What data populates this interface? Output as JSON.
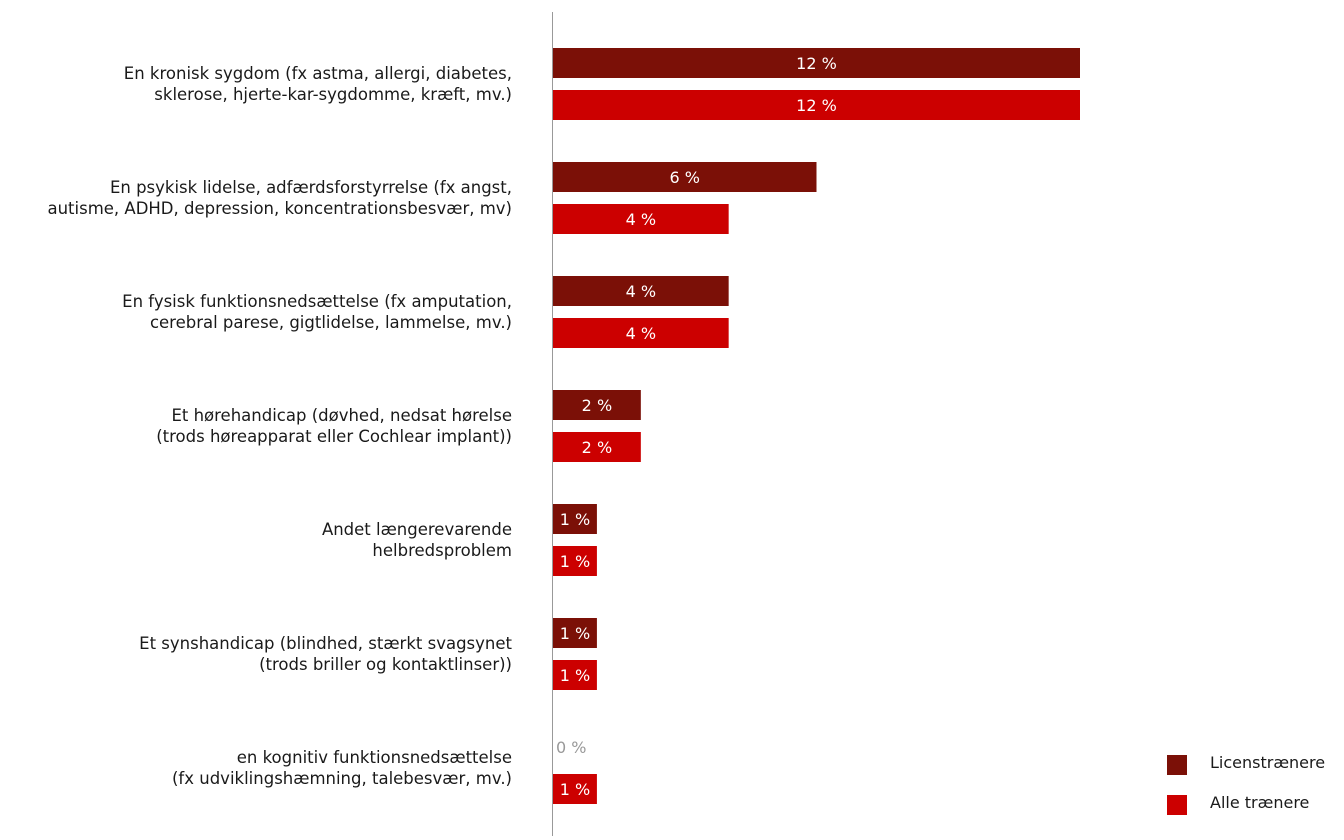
{
  "chart_data": {
    "type": "bar",
    "orientation": "horizontal",
    "categories": [
      [
        "En kronisk sygdom (fx astma, allergi, diabetes,",
        "sklerose, hjerte-kar-sygdomme, kræft, mv.)"
      ],
      [
        "En psykisk lidelse, adfærdsforstyrrelse (fx angst,",
        "autisme, ADHD, depression, koncentrationsbesvær, mv)"
      ],
      [
        "En fysisk funktionsnedsættelse (fx amputation,",
        "cerebral parese, gigtlidelse, lammelse, mv.)"
      ],
      [
        "Et hørehandicap (døvhed, nedsat hørelse",
        "(trods  høreapparat eller Cochlear implant))"
      ],
      [
        "Andet længerevarende",
        "helbredsproblem"
      ],
      [
        "Et synshandicap (blindhed, stærkt svagsynet",
        "(trods briller og kontaktlinser))"
      ],
      [
        "en kognitiv funktionsnedsættelse",
        "(fx udviklingshæmning, talebesvær, mv.)"
      ]
    ],
    "series": [
      {
        "name": "Licenstrænere",
        "color": "#7b1007",
        "values": [
          12,
          6,
          4,
          2,
          1,
          1,
          0
        ],
        "labels": [
          "12 %",
          "6 %",
          "4 %",
          "2 %",
          "1 %",
          "1 %",
          "0 %"
        ]
      },
      {
        "name": "Alle trænere",
        "color": "#cc0000",
        "values": [
          12,
          4,
          4,
          2,
          1,
          1,
          1
        ],
        "labels": [
          "12 %",
          "4 %",
          "4 %",
          "2 %",
          "1 %",
          "1 %",
          "1 %"
        ]
      }
    ],
    "xlim": [
      0,
      12
    ],
    "grid": false,
    "legend": "bottom-right"
  }
}
